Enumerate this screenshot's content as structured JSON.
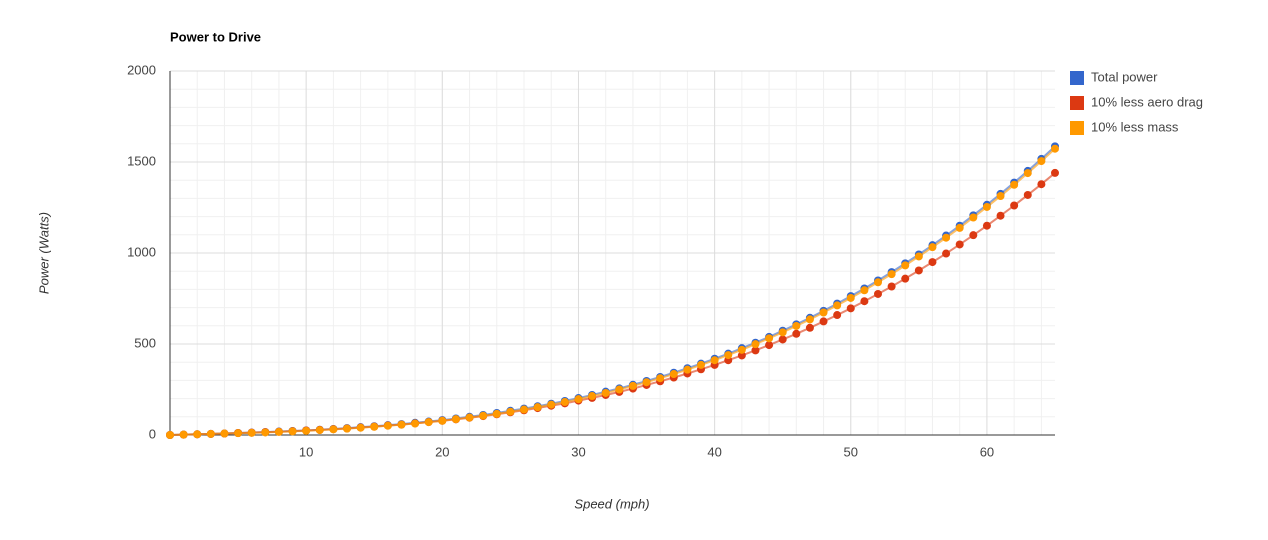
{
  "chart_data": {
    "type": "line",
    "title": "Power to Drive",
    "x_label": "Speed (mph)",
    "y_label": "Power (Watts)",
    "x": [
      0,
      1,
      2,
      3,
      4,
      5,
      6,
      7,
      8,
      9,
      10,
      11,
      12,
      13,
      14,
      15,
      16,
      17,
      18,
      19,
      20,
      21,
      22,
      23,
      24,
      25,
      26,
      27,
      28,
      29,
      30,
      31,
      32,
      33,
      34,
      35,
      36,
      37,
      38,
      39,
      40,
      41,
      42,
      43,
      44,
      45,
      46,
      47,
      48,
      49,
      50,
      51,
      52,
      53,
      54,
      55,
      56,
      57,
      58,
      59,
      60,
      61,
      62,
      63,
      64,
      65
    ],
    "series": [
      {
        "name": "Total power",
        "color": "#3366cc",
        "values": [
          0,
          2,
          4,
          6,
          8,
          11,
          13,
          16,
          19,
          22,
          25,
          29,
          33,
          38,
          43,
          48,
          54,
          60,
          67,
          74,
          82,
          91,
          100,
          110,
          121,
          133,
          145,
          158,
          172,
          187,
          203,
          220,
          238,
          256,
          276,
          297,
          319,
          342,
          367,
          392,
          419,
          447,
          477,
          507,
          539,
          573,
          608,
          644,
          682,
          722,
          763,
          805,
          849,
          895,
          943,
          992,
          1043,
          1096,
          1150,
          1207,
          1265,
          1325,
          1387,
          1451,
          1517,
          1586
        ]
      },
      {
        "name": "10% less aero drag",
        "color": "#dc3912",
        "values": [
          0,
          2,
          4,
          6,
          8,
          11,
          13,
          16,
          18,
          21,
          25,
          28,
          32,
          36,
          41,
          46,
          52,
          57,
          64,
          71,
          78,
          86,
          95,
          104,
          114,
          125,
          136,
          148,
          161,
          174,
          189,
          204,
          220,
          237,
          255,
          275,
          295,
          316,
          338,
          361,
          385,
          411,
          437,
          465,
          494,
          525,
          556,
          589,
          624,
          659,
          696,
          735,
          775,
          816,
          859,
          904,
          950,
          997,
          1047,
          1098,
          1150,
          1205,
          1261,
          1319,
          1378,
          1440
        ]
      },
      {
        "name": "10% less mass",
        "color": "#ff9900",
        "values": [
          0,
          2,
          4,
          6,
          8,
          10,
          12,
          14,
          17,
          20,
          23,
          27,
          31,
          35,
          40,
          45,
          51,
          57,
          63,
          71,
          78,
          87,
          96,
          106,
          116,
          128,
          140,
          153,
          167,
          181,
          197,
          214,
          231,
          250,
          270,
          290,
          312,
          335,
          359,
          385,
          411,
          439,
          468,
          499,
          531,
          564,
          599,
          635,
          673,
          712,
          753,
          795,
          839,
          884,
          932,
          981,
          1032,
          1084,
          1138,
          1195,
          1253,
          1313,
          1375,
          1439,
          1505,
          1573
        ]
      }
    ],
    "xlim": [
      0,
      65
    ],
    "xticks": [
      10,
      20,
      30,
      40,
      50,
      60
    ],
    "ylim": [
      0,
      2000
    ],
    "yticks": [
      0,
      500,
      1000,
      1500,
      2000
    ],
    "grid": true,
    "legend": "right"
  }
}
